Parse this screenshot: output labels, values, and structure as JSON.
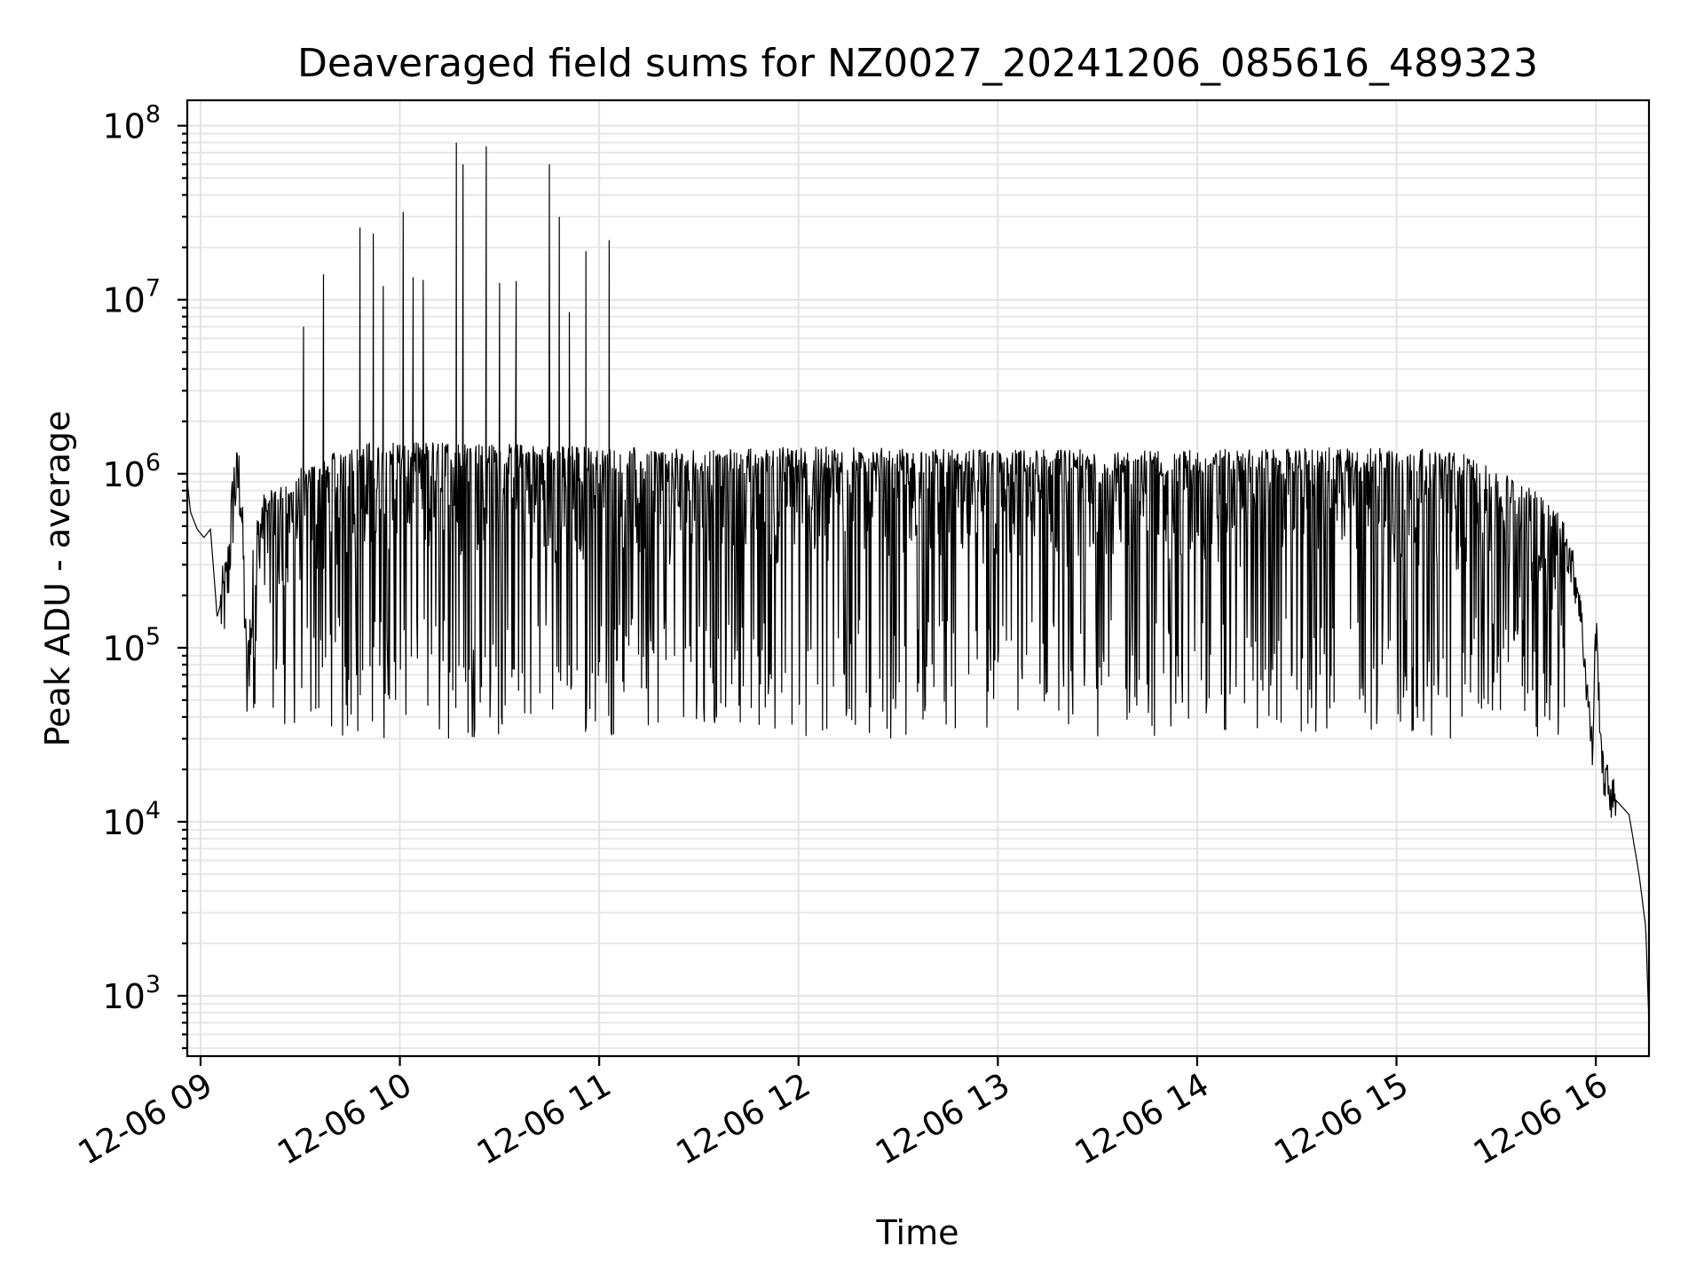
{
  "chart_data": {
    "type": "line",
    "title": "Deaveraged field sums for NZ0027_20241206_085616_489323",
    "xlabel": "Time",
    "ylabel": "Peak ADU - average",
    "yscale": "log",
    "ylim": [
      450,
      140000000
    ],
    "xlim": [
      "2024-12-06 08:56",
      "2024-12-06 16:16"
    ],
    "grid": {
      "major": true,
      "minor": true,
      "color": "#e3e3e3"
    },
    "legend": "none",
    "line_color": "#000000",
    "x_ticks": [
      {
        "time": "2024-12-06 09:00",
        "label": "12-06 09"
      },
      {
        "time": "2024-12-06 10:00",
        "label": "12-06 10"
      },
      {
        "time": "2024-12-06 11:00",
        "label": "12-06 11"
      },
      {
        "time": "2024-12-06 12:00",
        "label": "12-06 12"
      },
      {
        "time": "2024-12-06 13:00",
        "label": "12-06 13"
      },
      {
        "time": "2024-12-06 14:00",
        "label": "12-06 14"
      },
      {
        "time": "2024-12-06 15:00",
        "label": "12-06 15"
      },
      {
        "time": "2024-12-06 16:00",
        "label": "12-06 16"
      }
    ],
    "y_ticks": [
      {
        "value": 1000,
        "base": "10",
        "exp": "3"
      },
      {
        "value": 10000,
        "base": "10",
        "exp": "4"
      },
      {
        "value": 100000,
        "base": "10",
        "exp": "5"
      },
      {
        "value": 1000000,
        "base": "10",
        "exp": "6"
      },
      {
        "value": 10000000,
        "base": "10",
        "exp": "7"
      },
      {
        "value": 100000000,
        "base": "10",
        "exp": "8"
      }
    ],
    "series": [
      {
        "points": [
          [
            "2024-12-06 08:56",
            900000
          ],
          [
            "2024-12-06 08:57",
            600000
          ],
          [
            "2024-12-06 08:59",
            480000
          ],
          [
            "2024-12-06 09:01",
            430000
          ],
          [
            "2024-12-06 09:03",
            480000
          ],
          [
            "2024-12-06 09:05",
            150000
          ],
          [
            "2024-12-06 09:08",
            250000
          ],
          [
            "2024-12-06 09:10",
            900000
          ],
          [
            "2024-12-06 09:12",
            1000000
          ],
          [
            "2024-12-06 09:13",
            300000
          ],
          [
            "2024-12-06 09:14",
            55000
          ],
          [
            "2024-12-06 09:16",
            450000
          ],
          [
            "2024-12-06 09:20",
            700000
          ],
          [
            "2024-12-06 09:25",
            750000
          ],
          [
            "2024-12-06 09:30",
            900000
          ],
          [
            "2024-12-06 09:35",
            1000000
          ],
          [
            "2024-12-06 09:40",
            1100000
          ],
          [
            "2024-12-06 09:45",
            1200000
          ],
          [
            "2024-12-06 09:50",
            1250000
          ],
          [
            "2024-12-06 10:00",
            1300000
          ],
          [
            "2024-12-06 10:30",
            1250000
          ],
          [
            "2024-12-06 11:00",
            1200000
          ],
          [
            "2024-12-06 11:30",
            1150000
          ],
          [
            "2024-12-06 12:00",
            1200000
          ],
          [
            "2024-12-06 13:00",
            1150000
          ],
          [
            "2024-12-06 14:00",
            1150000
          ],
          [
            "2024-12-06 15:00",
            1200000
          ],
          [
            "2024-12-06 15:20",
            1100000
          ],
          [
            "2024-12-06 15:40",
            700000
          ],
          [
            "2024-12-06 15:50",
            500000
          ],
          [
            "2024-12-06 15:55",
            200000
          ],
          [
            "2024-12-06 15:59",
            25000
          ],
          [
            "2024-12-06 16:00",
            140000
          ],
          [
            "2024-12-06 16:02",
            20000
          ],
          [
            "2024-12-06 16:05",
            14000
          ],
          [
            "2024-12-06 16:10",
            11000
          ],
          [
            "2024-12-06 16:13",
            5000
          ],
          [
            "2024-12-06 16:15",
            2500
          ],
          [
            "2024-12-06 16:16",
            700
          ]
        ],
        "spikes": [
          [
            "2024-12-06 09:31",
            7000000
          ],
          [
            "2024-12-06 09:37",
            14000000
          ],
          [
            "2024-12-06 09:48",
            26000000
          ],
          [
            "2024-12-06 09:52",
            24000000
          ],
          [
            "2024-12-06 09:55",
            12000000
          ],
          [
            "2024-12-06 10:01",
            32000000
          ],
          [
            "2024-12-06 10:04",
            13500000
          ],
          [
            "2024-12-06 10:07",
            13000000
          ],
          [
            "2024-12-06 10:17",
            80000000
          ],
          [
            "2024-12-06 10:19",
            60000000
          ],
          [
            "2024-12-06 10:26",
            76000000
          ],
          [
            "2024-12-06 10:30",
            12500000
          ],
          [
            "2024-12-06 10:35",
            12800000
          ],
          [
            "2024-12-06 10:45",
            60000000
          ],
          [
            "2024-12-06 10:48",
            30000000
          ],
          [
            "2024-12-06 10:51",
            8500000
          ],
          [
            "2024-12-06 10:56",
            19000000
          ],
          [
            "2024-12-06 11:03",
            22000000
          ]
        ],
        "dips_range": [
          30000,
          150000
        ]
      }
    ]
  }
}
